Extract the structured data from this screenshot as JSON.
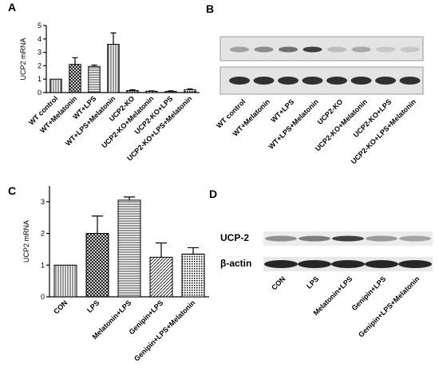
{
  "chart_data": [
    {
      "type": "bar",
      "panel": "A",
      "y_label": "UCP2 mRNA",
      "color": "#000000",
      "categories": [
        "WT control",
        "WT+Melatonin",
        "WT+LPS",
        "WT+LPS+Melatonin",
        "UCP2-KO",
        "UCP2-KO+Melatonin",
        "UCP2-KO+LPS",
        "UCP2-KO+LPS+Melatonin"
      ],
      "values": [
        1.0,
        2.1,
        1.95,
        3.6,
        0.15,
        0.1,
        0.08,
        0.2
      ],
      "errors": [
        0,
        0.5,
        0.1,
        0.85,
        0.05,
        0.03,
        0.05,
        0.08
      ],
      "ylim": [
        0,
        5
      ],
      "yticks": [
        0,
        1,
        2,
        3,
        4,
        5
      ]
    },
    {
      "type": "bar",
      "panel": "C",
      "y_label": "UCP2 mRNA",
      "color": "#000000",
      "categories": [
        "CON",
        "LPS",
        "Melatonin+LPS",
        "Genipin+LPS",
        "Genipin+LPS+Melatonin"
      ],
      "values": [
        1.0,
        2.0,
        3.05,
        1.25,
        1.35
      ],
      "errors": [
        0,
        0.55,
        0.1,
        0.45,
        0.2
      ],
      "ylim": [
        0,
        3.5
      ],
      "yticks": [
        0,
        1,
        2,
        3
      ]
    }
  ],
  "blots": [
    {
      "panel": "B",
      "lanes": [
        "WT control",
        "WT+Melatonin",
        "WT+LPS",
        "WT+LPS+Melatonin",
        "UCP2-KO",
        "UCP2-KO+Melatonin",
        "UCP2-KO+LPS",
        "UCP2-KO+LPS+Melatonin"
      ]
    },
    {
      "panel": "D",
      "rows": [
        "UCP-2",
        "β-actin"
      ],
      "lanes": [
        "CON",
        "LPS",
        "Melatonin+LPS",
        "Genipin+LPS",
        "Genipin+LPS+Melatonin"
      ]
    }
  ]
}
